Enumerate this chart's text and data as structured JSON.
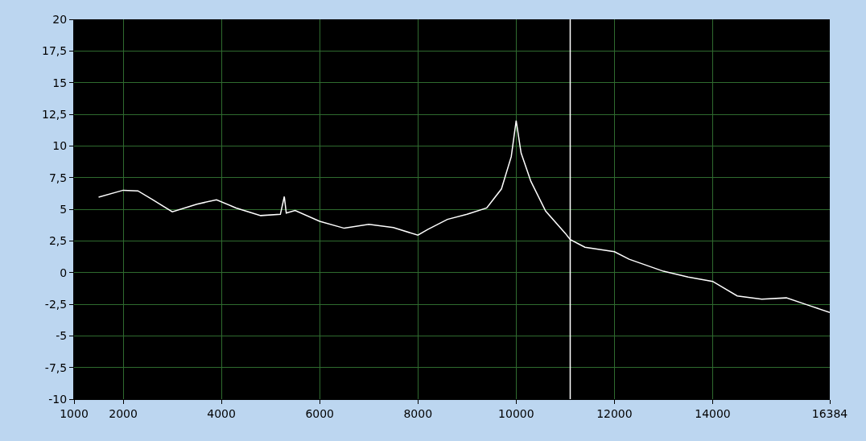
{
  "chart_data": {
    "type": "line",
    "x": [
      1500,
      2000,
      2300,
      2600,
      3000,
      3500,
      3900,
      4300,
      4800,
      5200,
      5280,
      5320,
      5500,
      6000,
      6500,
      7000,
      7500,
      8000,
      8200,
      8600,
      9000,
      9400,
      9700,
      9900,
      10000,
      10100,
      10300,
      10600,
      11000,
      11100,
      11400,
      12000,
      12300,
      13000,
      13500,
      14000,
      14500,
      15000,
      15500,
      16000,
      16384
    ],
    "series": [
      {
        "color": "#ffffff",
        "values": [
          5.95,
          6.5,
          6.45,
          5.75,
          4.8,
          5.4,
          5.75,
          5.1,
          4.5,
          4.6,
          6.0,
          4.7,
          4.9,
          4.05,
          3.5,
          3.8,
          3.55,
          2.95,
          3.4,
          4.2,
          4.6,
          5.1,
          6.6,
          9.15,
          12.0,
          9.45,
          7.2,
          4.85,
          3.1,
          2.6,
          2.0,
          1.65,
          1.05,
          0.1,
          -0.35,
          -0.7,
          -1.85,
          -2.1,
          -2.0,
          -2.65,
          -3.15
        ]
      }
    ],
    "xlim": [
      1000,
      16384
    ],
    "xticks": [
      1000,
      2000,
      4000,
      6000,
      8000,
      10000,
      12000,
      14000,
      16384
    ],
    "ylim": [
      -10,
      20
    ],
    "yticks": [
      {
        "value": -10,
        "label": "-10"
      },
      {
        "value": -7.5,
        "label": "-7,5"
      },
      {
        "value": -5,
        "label": "-5"
      },
      {
        "value": -2.5,
        "label": "-2,5"
      },
      {
        "value": 0,
        "label": "0"
      },
      {
        "value": 2.5,
        "label": "2,5"
      },
      {
        "value": 5,
        "label": "5"
      },
      {
        "value": 7.5,
        "label": "7,5"
      },
      {
        "value": 10,
        "label": "10"
      },
      {
        "value": 12.5,
        "label": "12,5"
      },
      {
        "value": 15,
        "label": "15"
      },
      {
        "value": 17.5,
        "label": "17,5"
      },
      {
        "value": 20,
        "label": "20"
      }
    ],
    "grid": true,
    "marker": "none",
    "line_style": "solid",
    "ref_lines": [
      {
        "axis": "x",
        "value": 11100,
        "color": "#ffffff"
      }
    ]
  }
}
